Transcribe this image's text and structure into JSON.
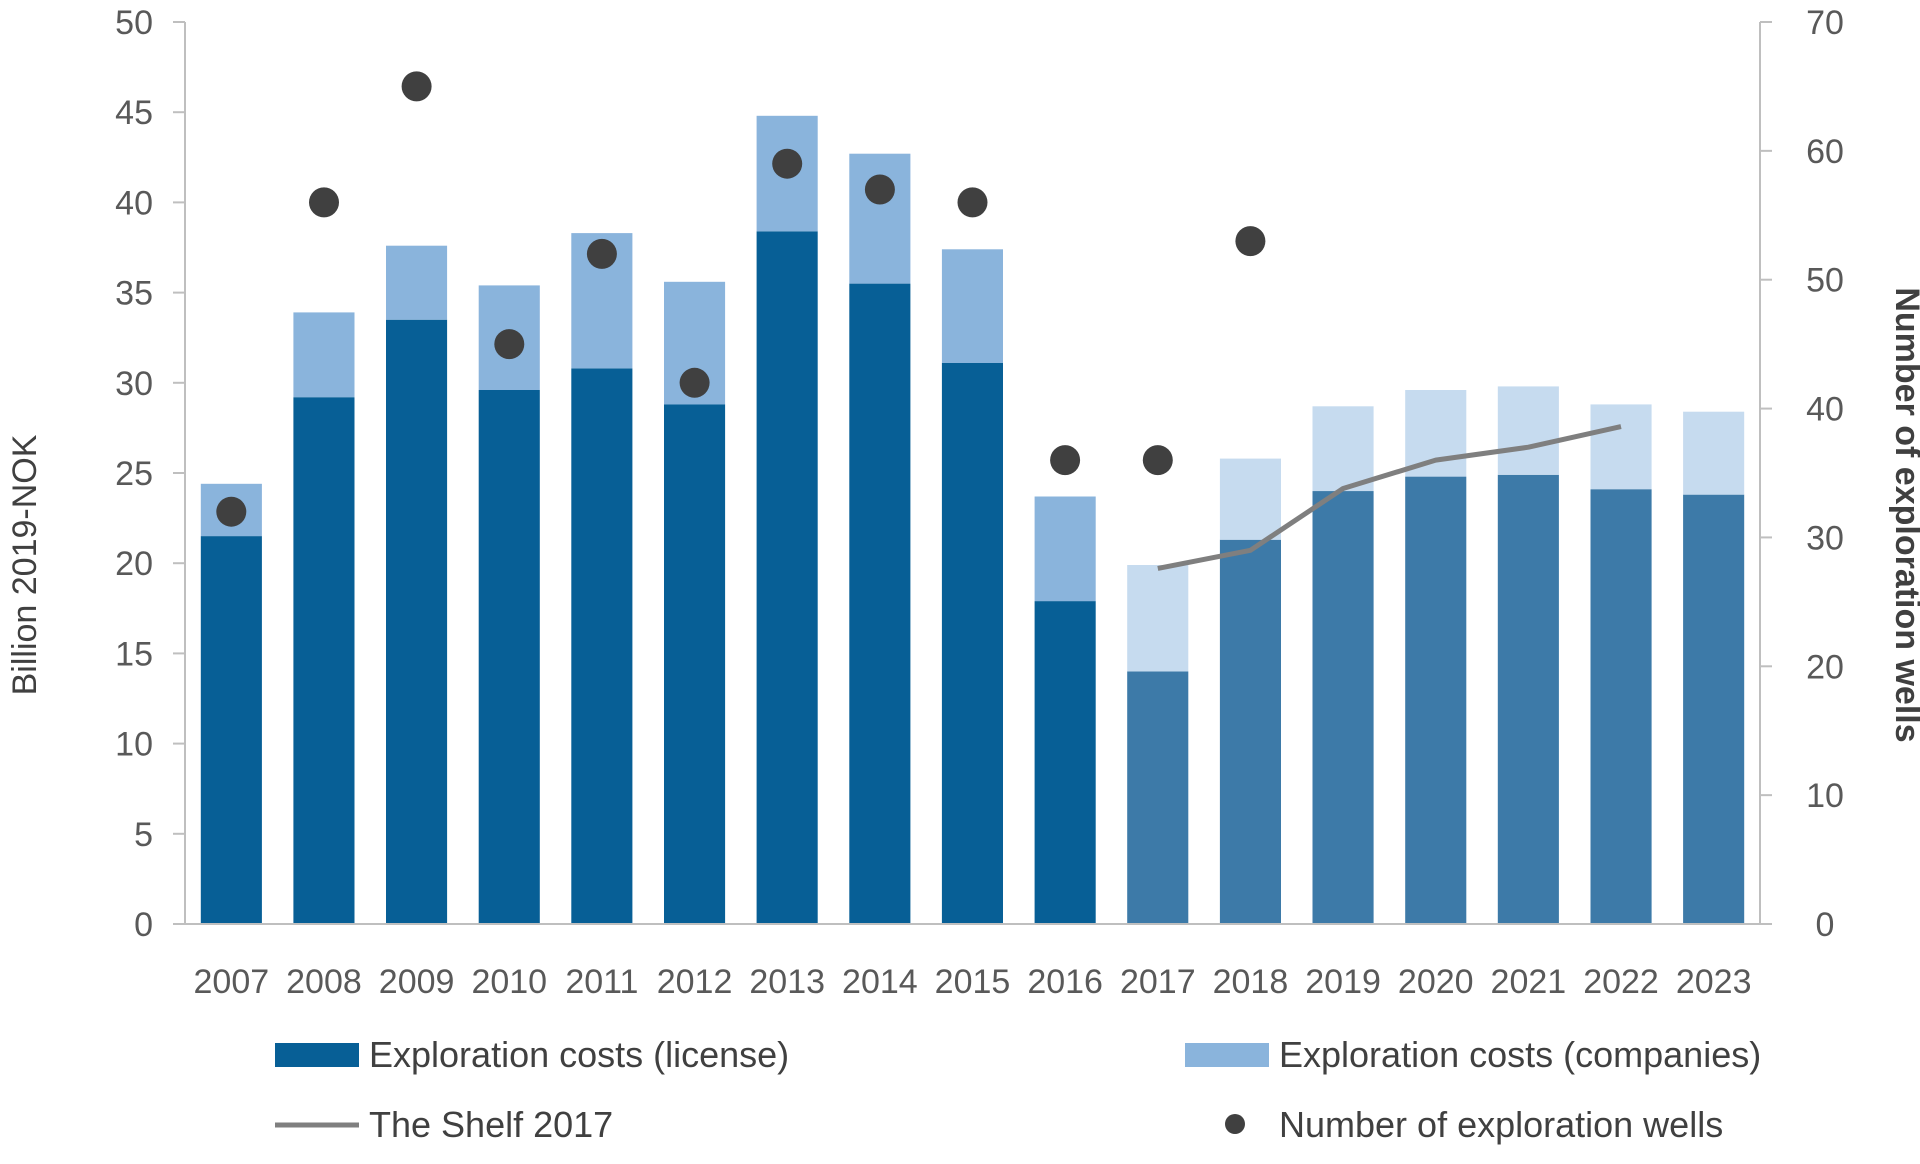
{
  "chart_data": {
    "type": "bar",
    "stacked": true,
    "categories": [
      "2007",
      "2008",
      "2009",
      "2010",
      "2011",
      "2012",
      "2013",
      "2014",
      "2015",
      "2016",
      "2017",
      "2018",
      "2019",
      "2020",
      "2021",
      "2022",
      "2023"
    ],
    "forecast_from": "2017",
    "ylabel": "Billion 2019-NOK",
    "y2label": "Number of exploration wells",
    "ylim": [
      0,
      50
    ],
    "y2lim": [
      0,
      70
    ],
    "yticks": [
      0,
      5,
      10,
      15,
      20,
      25,
      30,
      35,
      40,
      45,
      50
    ],
    "y2ticks": [
      0,
      10,
      20,
      30,
      40,
      50,
      60,
      70
    ],
    "grid": false,
    "legend_position": "bottom",
    "series": [
      {
        "name": "Exploration costs (license)",
        "kind": "bar",
        "axis": "left",
        "color": "#075f96",
        "forecast_color": "#3d7aa8",
        "values": [
          21.5,
          29.2,
          33.5,
          29.6,
          30.8,
          28.8,
          38.4,
          35.5,
          31.1,
          17.9,
          14.0,
          21.3,
          24.0,
          24.8,
          24.9,
          24.1,
          23.8
        ]
      },
      {
        "name": "Exploration costs (companies)",
        "kind": "bar",
        "axis": "left",
        "color": "#8ab4dc",
        "forecast_color": "#c6dbef",
        "values": [
          2.9,
          4.7,
          4.1,
          5.8,
          7.5,
          6.8,
          6.4,
          7.2,
          6.3,
          5.8,
          5.9,
          4.5,
          4.7,
          4.8,
          4.9,
          4.7,
          4.6
        ]
      },
      {
        "name": "The Shelf 2017",
        "kind": "line",
        "axis": "right",
        "color": "#7f7f7f",
        "x": [
          "2017",
          "2018",
          "2019",
          "2020",
          "2021",
          "2022"
        ],
        "values": [
          27.6,
          29.0,
          33.8,
          36.0,
          37.0,
          38.6
        ]
      },
      {
        "name": "Number of exploration wells",
        "kind": "scatter",
        "axis": "right",
        "color": "#404040",
        "x": [
          "2007",
          "2008",
          "2009",
          "2010",
          "2011",
          "2012",
          "2013",
          "2014",
          "2015",
          "2016",
          "2017",
          "2018"
        ],
        "values": [
          32,
          56,
          65,
          45,
          52,
          42,
          59,
          57,
          56,
          36,
          36,
          53
        ]
      }
    ]
  }
}
